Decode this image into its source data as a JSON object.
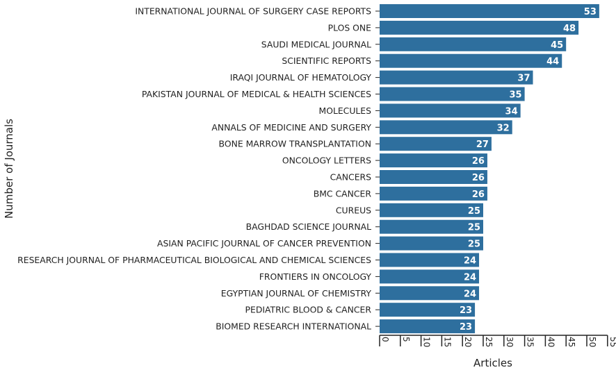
{
  "chart_data": {
    "type": "bar",
    "orientation": "horizontal",
    "xlabel": "Articles",
    "ylabel": "Number of Journals",
    "xlim": [
      0,
      55
    ],
    "xticks": [
      0,
      5,
      10,
      15,
      20,
      25,
      30,
      35,
      40,
      45,
      50,
      55
    ],
    "grid": false,
    "legend": "none",
    "bar_color": "#2e6f9e",
    "categories": [
      "INTERNATIONAL JOURNAL OF SURGERY CASE REPORTS",
      "PLOS ONE",
      "SAUDI MEDICAL JOURNAL",
      "SCIENTIFIC REPORTS",
      "IRAQI JOURNAL OF HEMATOLOGY",
      "PAKISTAN JOURNAL OF MEDICAL & HEALTH SCIENCES",
      "MOLECULES",
      "ANNALS OF MEDICINE AND SURGERY",
      "BONE MARROW TRANSPLANTATION",
      "ONCOLOGY LETTERS",
      "CANCERS",
      "BMC CANCER",
      "CUREUS",
      "BAGHDAD SCIENCE JOURNAL",
      "ASIAN PACIFIC JOURNAL OF CANCER PREVENTION",
      "RESEARCH JOURNAL OF PHARMACEUTICAL BIOLOGICAL AND CHEMICAL SCIENCES",
      "FRONTIERS IN ONCOLOGY",
      "EGYPTIAN JOURNAL OF CHEMISTRY",
      "PEDIATRIC BLOOD & CANCER",
      "BIOMED RESEARCH INTERNATIONAL"
    ],
    "values": [
      53,
      48,
      45,
      44,
      37,
      35,
      34,
      32,
      27,
      26,
      26,
      26,
      25,
      25,
      25,
      24,
      24,
      24,
      23,
      23
    ]
  }
}
